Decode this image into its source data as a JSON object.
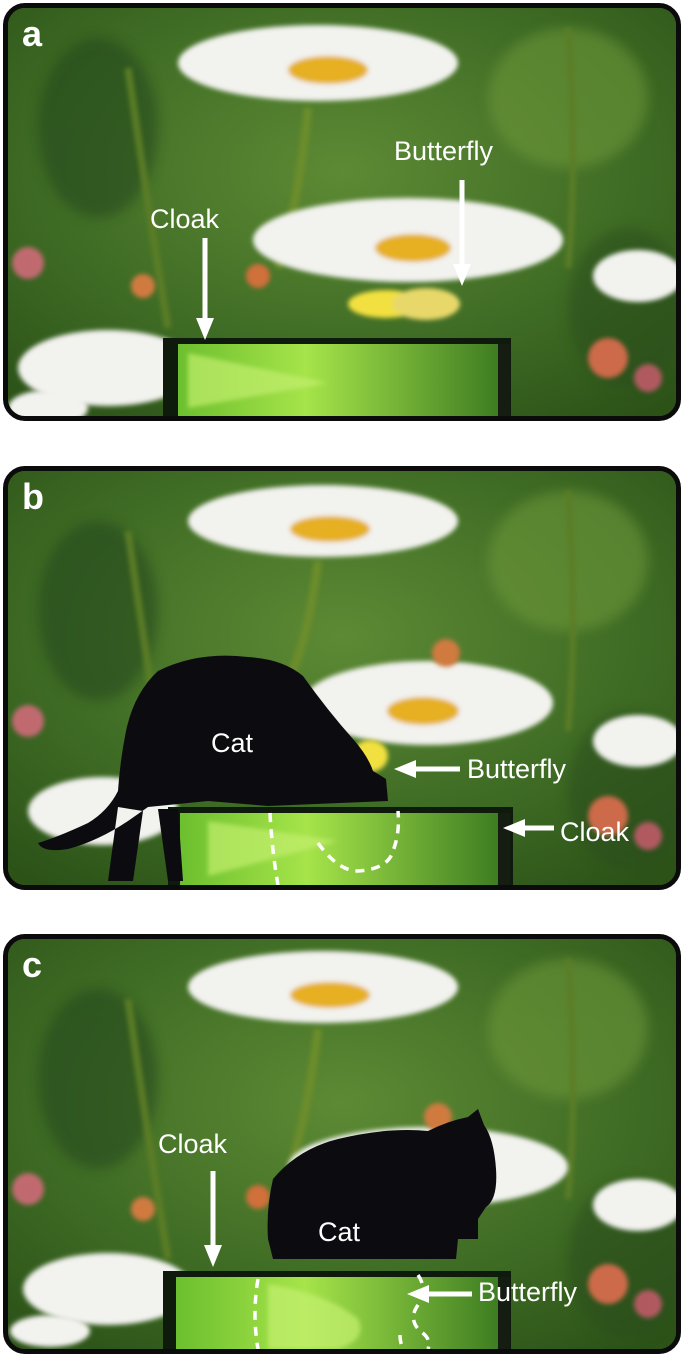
{
  "panels": [
    {
      "letter": "a",
      "labels": {
        "cloak": "Cloak",
        "butterfly": "Butterfly"
      }
    },
    {
      "letter": "b",
      "labels": {
        "cat": "Cat",
        "butterfly": "Butterfly",
        "cloak": "Cloak"
      }
    },
    {
      "letter": "c",
      "labels": {
        "cloak": "Cloak",
        "cat": "Cat",
        "butterfly": "Butterfly"
      }
    }
  ],
  "colors": {
    "background_green": "#3f6e25",
    "petal_white": "#f2f2ee",
    "flower_center": "#e6b020",
    "cloak_green": "#9be03a",
    "cat_black": "#0c0c10",
    "butterfly_yellow": "#f2e040",
    "frame_black": "#0b0b0b"
  }
}
